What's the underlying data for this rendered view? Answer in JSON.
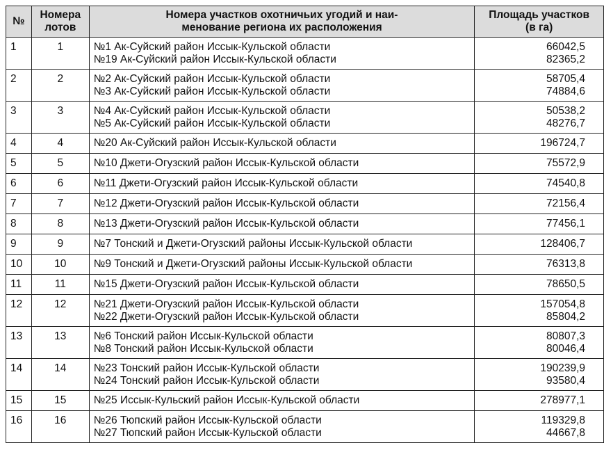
{
  "table": {
    "header": [
      [
        "№"
      ],
      [
        "Номера",
        "лотов"
      ],
      [
        "Номера участков охотничьих угодий и наи-",
        "менование региона их расположения"
      ],
      [
        "Площадь участков",
        "(в га)"
      ]
    ],
    "rows": [
      {
        "num": "1",
        "lot": "1",
        "regions": [
          "№1 Ак-Суйский район Иссык-Кульской области",
          "№19 Ак-Суйский район Иссык-Кульской области"
        ],
        "areas": [
          "66042,5",
          "82365,2"
        ]
      },
      {
        "num": "2",
        "lot": "2",
        "regions": [
          "№2 Ак-Суйский район Иссык-Кульской области",
          "№3 Ак-Суйский район Иссык-Кульской области"
        ],
        "areas": [
          "58705,4",
          "74884,6"
        ]
      },
      {
        "num": "3",
        "lot": "3",
        "regions": [
          "№4 Ак-Суйский район Иссык-Кульской области",
          "№5 Ак-Суйский район Иссык-Кульской области"
        ],
        "areas": [
          "50538,2",
          "48276,7"
        ]
      },
      {
        "num": "4",
        "lot": "4",
        "regions": [
          "№20 Ак-Суйский район Иссык-Кульской области"
        ],
        "areas": [
          "196724,7"
        ]
      },
      {
        "num": "5",
        "lot": "5",
        "regions": [
          "№10 Джети-Огузский район Иссык-Кульской области"
        ],
        "areas": [
          "75572,9"
        ]
      },
      {
        "num": "6",
        "lot": "6",
        "regions": [
          "№11 Джети-Огузский район Иссык-Кульской области"
        ],
        "areas": [
          "74540,8"
        ]
      },
      {
        "num": "7",
        "lot": "7",
        "regions": [
          "№12 Джети-Огузский район Иссык-Кульской области"
        ],
        "areas": [
          "72156,4"
        ]
      },
      {
        "num": "8",
        "lot": "8",
        "regions": [
          "№13 Джети-Огузский район Иссык-Кульской области"
        ],
        "areas": [
          "77456,1"
        ]
      },
      {
        "num": "9",
        "lot": "9",
        "regions": [
          "№7 Тонский и Джети-Огузский районы Иссык-Кульской области"
        ],
        "areas": [
          "128406,7"
        ]
      },
      {
        "num": "10",
        "lot": "10",
        "regions": [
          "№9 Тонский и Джети-Огузский районы Иссык-Кульской области"
        ],
        "areas": [
          "76313,8"
        ]
      },
      {
        "num": "11",
        "lot": "11",
        "regions": [
          "№15 Джети-Огузский район Иссык-Кульской области"
        ],
        "areas": [
          "78650,5"
        ]
      },
      {
        "num": "12",
        "lot": "12",
        "regions": [
          "№21 Джети-Огузский район Иссык-Кульской области",
          "№22 Джети-Огузский район Иссык-Кульской области"
        ],
        "areas": [
          "157054,8",
          "85804,2"
        ]
      },
      {
        "num": "13",
        "lot": "13",
        "regions": [
          "№6 Тонский район Иссык-Кульской области",
          "№8 Тонский район Иссык-Кульской области"
        ],
        "areas": [
          "80807,3",
          "80046,4"
        ]
      },
      {
        "num": "14",
        "lot": "14",
        "regions": [
          "№23 Тонский район Иссык-Кульской области",
          "№24 Тонский район Иссык-Кульской области"
        ],
        "areas": [
          "190239,9",
          "93580,4"
        ]
      },
      {
        "num": "15",
        "lot": "15",
        "regions": [
          "№25 Иссык-Кульский район Иссык-Кульской области"
        ],
        "areas": [
          "278977,1"
        ]
      },
      {
        "num": "16",
        "lot": "16",
        "regions": [
          "№26 Тюпский район Иссык-Кульской области",
          "№27 Тюпский район Иссык-Кульской области"
        ],
        "areas": [
          "119329,8",
          "44667,8"
        ]
      }
    ]
  }
}
